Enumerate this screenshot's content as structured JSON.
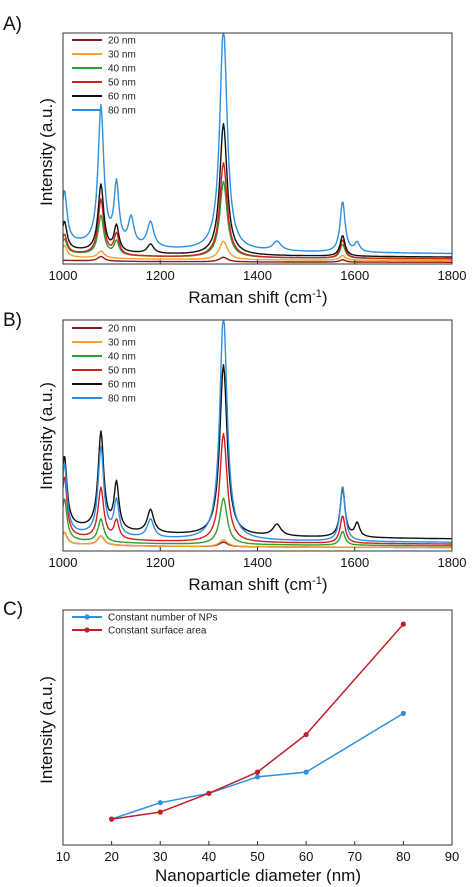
{
  "chart_data": [
    {
      "id": "A",
      "panel_label": "A)",
      "type": "line",
      "xlabel": "Raman shift (cm",
      "xlabel_sup": "-1",
      "xlabel_end": ")",
      "ylabel": "Intensity (a.u.)",
      "xlim": [
        1000,
        1800
      ],
      "ylim": [
        0,
        1.0
      ],
      "x_ticks": [
        "1000",
        "1200",
        "1400",
        "1600",
        "1800"
      ],
      "legend_position": "top-left",
      "series": [
        {
          "name": "20 nm",
          "color": "#8b1a1a",
          "base": 0.01,
          "peaks": [
            [
              1078,
              0.02,
              8
            ],
            [
              1330,
              0.02,
              10
            ],
            [
              1575,
              0.01,
              7
            ]
          ]
        },
        {
          "name": "30 nm",
          "color": "#f0a030",
          "base": 0.02,
          "peaks": [
            [
              1003,
              0.05,
              6
            ],
            [
              1078,
              0.03,
              8
            ],
            [
              1330,
              0.08,
              10
            ],
            [
              1575,
              0.02,
              7
            ]
          ]
        },
        {
          "name": "40 nm",
          "color": "#2ca02c",
          "base": 0.03,
          "peaks": [
            [
              1003,
              0.06,
              6
            ],
            [
              1078,
              0.17,
              7
            ],
            [
              1110,
              0.06,
              6
            ],
            [
              1330,
              0.33,
              9
            ],
            [
              1575,
              0.06,
              6
            ]
          ]
        },
        {
          "name": "50 nm",
          "color": "#d42020",
          "base": 0.03,
          "peaks": [
            [
              1003,
              0.08,
              6
            ],
            [
              1078,
              0.24,
              7
            ],
            [
              1110,
              0.09,
              6
            ],
            [
              1330,
              0.41,
              9
            ],
            [
              1575,
              0.08,
              6
            ]
          ]
        },
        {
          "name": "60 nm",
          "color": "#111111",
          "base": 0.04,
          "peaks": [
            [
              1003,
              0.12,
              6
            ],
            [
              1078,
              0.29,
              7
            ],
            [
              1110,
              0.11,
              6
            ],
            [
              1180,
              0.04,
              8
            ],
            [
              1330,
              0.57,
              9
            ],
            [
              1575,
              0.09,
              6
            ]
          ]
        },
        {
          "name": "80 nm",
          "color": "#2f8fe0",
          "base": 0.06,
          "peaks": [
            [
              1003,
              0.22,
              6
            ],
            [
              1078,
              0.6,
              7
            ],
            [
              1110,
              0.26,
              6
            ],
            [
              1140,
              0.12,
              7
            ],
            [
              1180,
              0.11,
              8
            ],
            [
              1330,
              0.97,
              9
            ],
            [
              1440,
              0.04,
              10
            ],
            [
              1575,
              0.22,
              6
            ],
            [
              1605,
              0.04,
              6
            ]
          ]
        }
      ]
    },
    {
      "id": "B",
      "panel_label": "B)",
      "type": "line",
      "xlabel": "Raman shift (cm",
      "xlabel_sup": "-1",
      "xlabel_end": ")",
      "ylabel": "Intensity (a.u.)",
      "xlim": [
        1000,
        1800
      ],
      "ylim": [
        0,
        1.0
      ],
      "x_ticks": [
        "1000",
        "1200",
        "1400",
        "1600",
        "1800"
      ],
      "legend_position": "top-left",
      "series": [
        {
          "name": "20 nm",
          "color": "#8b1a1a",
          "base": 0.02,
          "peaks": [
            [
              1003,
              0.05,
              6
            ],
            [
              1078,
              0.04,
              8
            ],
            [
              1330,
              0.02,
              10
            ]
          ]
        },
        {
          "name": "30 nm",
          "color": "#f0a030",
          "base": 0.02,
          "peaks": [
            [
              1003,
              0.05,
              6
            ],
            [
              1078,
              0.04,
              8
            ],
            [
              1330,
              0.03,
              10
            ]
          ]
        },
        {
          "name": "40 nm",
          "color": "#2ca02c",
          "base": 0.03,
          "peaks": [
            [
              1003,
              0.18,
              6
            ],
            [
              1078,
              0.1,
              7
            ],
            [
              1330,
              0.2,
              9
            ],
            [
              1575,
              0.06,
              6
            ]
          ]
        },
        {
          "name": "50 nm",
          "color": "#d42020",
          "base": 0.04,
          "peaks": [
            [
              1003,
              0.26,
              6
            ],
            [
              1078,
              0.22,
              7
            ],
            [
              1110,
              0.08,
              6
            ],
            [
              1330,
              0.47,
              9
            ],
            [
              1575,
              0.12,
              6
            ]
          ]
        },
        {
          "name": "60 nm",
          "color": "#111111",
          "base": 0.07,
          "peaks": [
            [
              1003,
              0.3,
              6
            ],
            [
              1078,
              0.42,
              7
            ],
            [
              1110,
              0.2,
              6
            ],
            [
              1180,
              0.1,
              8
            ],
            [
              1330,
              0.74,
              9
            ],
            [
              1440,
              0.05,
              10
            ],
            [
              1575,
              0.21,
              6
            ],
            [
              1605,
              0.06,
              6
            ]
          ]
        },
        {
          "name": "80 nm",
          "color": "#2f8fe0",
          "base": 0.05,
          "peaks": [
            [
              1003,
              0.3,
              6
            ],
            [
              1078,
              0.38,
              7
            ],
            [
              1110,
              0.15,
              6
            ],
            [
              1180,
              0.08,
              8
            ],
            [
              1330,
              0.98,
              9
            ],
            [
              1575,
              0.24,
              6
            ]
          ]
        }
      ]
    },
    {
      "id": "C",
      "panel_label": "C)",
      "type": "line",
      "xlabel": "Nanoparticle diameter (nm)",
      "ylabel": "Intensity (a.u.)",
      "xlim": [
        10,
        90
      ],
      "ylim": [
        0,
        1.0
      ],
      "x_ticks": [
        "10",
        "20",
        "30",
        "40",
        "50",
        "60",
        "70",
        "80",
        "90"
      ],
      "legend_position": "top-left",
      "x": [
        20,
        30,
        40,
        50,
        60,
        80
      ],
      "series": [
        {
          "name": "Constant number of NPs",
          "color": "#2f8fe0",
          "values": [
            0.11,
            0.18,
            0.22,
            0.29,
            0.31,
            0.56
          ]
        },
        {
          "name": "Constant surface area",
          "color": "#c0202a",
          "values": [
            0.11,
            0.14,
            0.22,
            0.31,
            0.47,
            0.94
          ]
        }
      ]
    }
  ]
}
